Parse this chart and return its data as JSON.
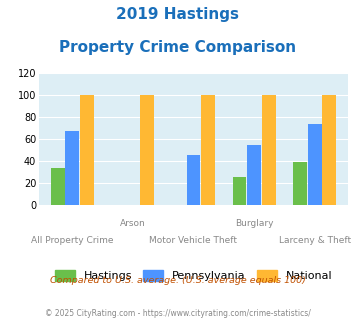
{
  "title_line1": "2019 Hastings",
  "title_line2": "Property Crime Comparison",
  "title_color": "#1a6fba",
  "categories": [
    "All Property Crime",
    "Arson",
    "Motor Vehicle Theft",
    "Burglary",
    "Larceny & Theft"
  ],
  "x_labels_row1": [
    "",
    "Arson",
    "",
    "Burglary",
    ""
  ],
  "x_labels_row2": [
    "All Property Crime",
    "",
    "Motor Vehicle Theft",
    "",
    "Larceny & Theft"
  ],
  "hastings": [
    33,
    0,
    0,
    25,
    39
  ],
  "pennsylvania": [
    67,
    0,
    45,
    54,
    73
  ],
  "national": [
    100,
    100,
    100,
    100,
    100
  ],
  "hastings_color": "#6abf4b",
  "pennsylvania_color": "#4d94ff",
  "national_color": "#ffb833",
  "bg_color": "#ddeef5",
  "ylim": [
    0,
    120
  ],
  "yticks": [
    0,
    20,
    40,
    60,
    80,
    100,
    120
  ],
  "legend_labels": [
    "Hastings",
    "Pennsylvania",
    "National"
  ],
  "footnote1": "Compared to U.S. average. (U.S. average equals 100)",
  "footnote2": "© 2025 CityRating.com - https://www.cityrating.com/crime-statistics/",
  "footnote1_color": "#c05000",
  "footnote2_color": "#888888"
}
